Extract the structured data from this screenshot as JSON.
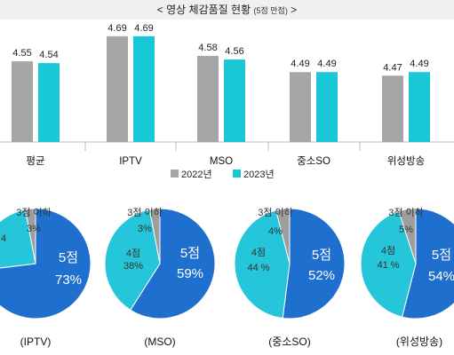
{
  "header": {
    "title": "< 영상 체감품질 현황",
    "subtitle": "(5점 만점)",
    "close": ">"
  },
  "colors": {
    "y2022": "#a6a6a6",
    "y2023": "#19c8d6",
    "pie_main": "#1f6fcf",
    "pie_mid": "#26c6da",
    "pie_low": "#9e9e9e",
    "header_bg": "#eef0f2"
  },
  "chart_data": [
    {
      "type": "bar",
      "categories": [
        "평균",
        "IPTV",
        "MSO",
        "중소SO",
        "위성방송"
      ],
      "series": [
        {
          "name": "2022년",
          "values": [
            4.55,
            4.69,
            4.58,
            4.49,
            4.47
          ]
        },
        {
          "name": "2023년",
          "values": [
            4.54,
            4.69,
            4.56,
            4.49,
            4.49
          ]
        }
      ],
      "value_labels": [
        [
          "4.55",
          "4.69",
          "4.58",
          "4.49",
          "4.47"
        ],
        [
          "4.54",
          "4.69",
          "4.56",
          "4.49",
          "4.49"
        ]
      ],
      "legend_position": "bottom",
      "grid": false
    },
    {
      "type": "pie",
      "pies": [
        {
          "caption": "(IPTV)",
          "slices": [
            {
              "label": "5점",
              "value": 73,
              "pct": "73%",
              "color": "pie_main"
            },
            {
              "label": "4",
              "value": 24,
              "pct": "",
              "color": "pie_mid"
            },
            {
              "label": "3점 이하",
              "value": 3,
              "pct": "3%",
              "color": "pie_low"
            }
          ]
        },
        {
          "caption": "(MSO)",
          "slices": [
            {
              "label": "5점",
              "value": 59,
              "pct": "59%",
              "color": "pie_main"
            },
            {
              "label": "4점",
              "value": 38,
              "pct": "38%",
              "color": "pie_mid"
            },
            {
              "label": "3점 이하",
              "value": 3,
              "pct": "3%",
              "color": "pie_low"
            }
          ]
        },
        {
          "caption": "(중소SO)",
          "slices": [
            {
              "label": "5점",
              "value": 52,
              "pct": "52%",
              "color": "pie_main"
            },
            {
              "label": "4점",
              "value": 44,
              "pct": "44 %",
              "color": "pie_mid"
            },
            {
              "label": "3점 이하",
              "value": 4,
              "pct": "4%",
              "color": "pie_low"
            }
          ]
        },
        {
          "caption": "(위성방송)",
          "slices": [
            {
              "label": "5점",
              "value": 54,
              "pct": "54%",
              "color": "pie_main"
            },
            {
              "label": "4점",
              "value": 41,
              "pct": "41 %",
              "color": "pie_mid"
            },
            {
              "label": "3점 이하",
              "value": 5,
              "pct": "5%",
              "color": "pie_low"
            }
          ]
        }
      ]
    }
  ]
}
